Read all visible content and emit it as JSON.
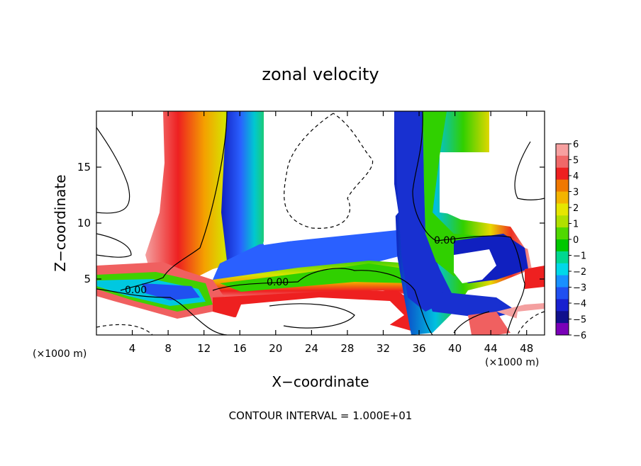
{
  "chart_data": {
    "type": "heatmap",
    "title": "zonal velocity",
    "xlabel": "X−coordinate",
    "ylabel": "Z−coordinate",
    "x_units_left": "(×1000 m)",
    "x_units_right": "(×1000 m)",
    "footer": "CONTOUR INTERVAL = 1.000E+01",
    "xlim": [
      0,
      50
    ],
    "ylim": [
      0,
      20
    ],
    "x_ticks": [
      4,
      8,
      12,
      16,
      20,
      24,
      28,
      32,
      36,
      40,
      44,
      48
    ],
    "y_ticks": [
      5,
      10,
      15
    ],
    "contour_labels": [
      "0.00",
      "0.00",
      "0.00"
    ],
    "colorbar": {
      "ticks": [
        "6",
        "5",
        "4",
        "3",
        "2",
        "1",
        "0",
        "−1",
        "−2",
        "−3",
        "−4",
        "−5",
        "−6"
      ],
      "colors": [
        "#f7a0a0",
        "#f06868",
        "#ee2020",
        "#f07800",
        "#f4b400",
        "#e6e600",
        "#b0e000",
        "#50d800",
        "#00c800",
        "#00d890",
        "#00d8e8",
        "#1890ff",
        "#2050f0",
        "#1820d0",
        "#10108c",
        "#7a00b8"
      ]
    }
  }
}
